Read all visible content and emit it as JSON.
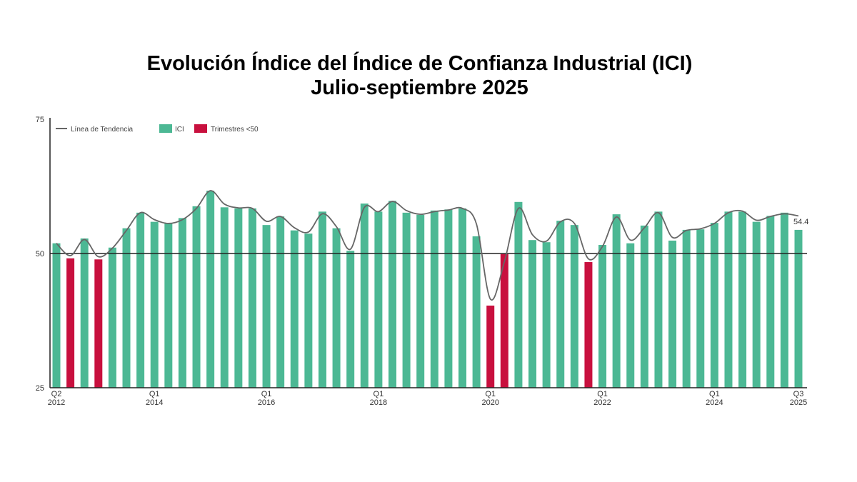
{
  "chart_data": {
    "type": "bar",
    "title": "Evolución Índice del Índice de Confianza Industrial (ICI)",
    "subtitle": "Julio-septiembre 2025",
    "ylim": [
      25,
      75
    ],
    "yticks": [
      25,
      50,
      75
    ],
    "reference_line": 50,
    "grid": false,
    "legend_position": "top-left",
    "legend": [
      "Línea de Tendencia",
      "ICI",
      "Trimestres <50"
    ],
    "colors": {
      "ici": "#4cb894",
      "below50": "#c8103e",
      "trend": "#666666",
      "axis": "#222222"
    },
    "xtick_labels": [
      {
        "index": 0,
        "q": "Q2",
        "year": "2012"
      },
      {
        "index": 7,
        "q": "Q1",
        "year": "2014"
      },
      {
        "index": 15,
        "q": "Q1",
        "year": "2016"
      },
      {
        "index": 23,
        "q": "Q1",
        "year": "2018"
      },
      {
        "index": 31,
        "q": "Q1",
        "year": "2020"
      },
      {
        "index": 39,
        "q": "Q1",
        "year": "2022"
      },
      {
        "index": 47,
        "q": "Q1",
        "year": "2024"
      },
      {
        "index": 53,
        "q": "Q3",
        "year": "2025"
      }
    ],
    "categories": [
      "2012Q2",
      "2012Q3",
      "2012Q4",
      "2013Q1",
      "2013Q2",
      "2013Q3",
      "2013Q4",
      "2014Q1",
      "2014Q2",
      "2014Q3",
      "2014Q4",
      "2015Q1",
      "2015Q2",
      "2015Q3",
      "2015Q4",
      "2016Q1",
      "2016Q2",
      "2016Q3",
      "2016Q4",
      "2017Q1",
      "2017Q2",
      "2017Q3",
      "2017Q4",
      "2018Q1",
      "2018Q2",
      "2018Q3",
      "2018Q4",
      "2019Q1",
      "2019Q2",
      "2019Q3",
      "2019Q4",
      "2020Q1",
      "2020Q2",
      "2020Q3",
      "2020Q4",
      "2021Q1",
      "2021Q2",
      "2021Q3",
      "2021Q4",
      "2022Q1",
      "2022Q2",
      "2022Q3",
      "2022Q4",
      "2023Q1",
      "2023Q2",
      "2023Q3",
      "2023Q4",
      "2024Q1",
      "2024Q2",
      "2024Q3",
      "2024Q4",
      "2025Q1",
      "2025Q2",
      "2025Q3"
    ],
    "values": [
      51.9,
      49.1,
      52.8,
      48.9,
      51.1,
      54.7,
      57.6,
      55.9,
      55.6,
      56.6,
      58.8,
      61.7,
      58.6,
      58.4,
      58.4,
      55.3,
      56.9,
      54.3,
      53.7,
      57.8,
      54.7,
      50.5,
      59.3,
      57.8,
      59.8,
      57.6,
      57.2,
      58.0,
      58.2,
      58.4,
      53.2,
      40.3,
      49.9,
      59.6,
      52.5,
      52.1,
      56.1,
      55.3,
      48.4,
      51.6,
      57.3,
      51.9,
      55.2,
      57.8,
      52.4,
      54.4,
      54.5,
      55.7,
      57.8,
      57.8,
      55.9,
      57.0,
      57.6,
      54.4
    ],
    "trend": [
      51.9,
      49.6,
      52.6,
      49.4,
      51.0,
      54.3,
      57.6,
      56.3,
      55.6,
      56.3,
      58.4,
      61.7,
      59.2,
      58.5,
      58.4,
      56.0,
      56.9,
      54.8,
      54.0,
      57.4,
      55.0,
      50.8,
      58.6,
      57.8,
      59.7,
      58.0,
      57.3,
      57.8,
      58.1,
      58.4,
      55.5,
      41.5,
      48.5,
      58.4,
      53.5,
      52.3,
      55.9,
      55.6,
      49.0,
      51.3,
      56.8,
      52.5,
      54.8,
      57.6,
      53.0,
      54.3,
      54.6,
      55.6,
      57.6,
      57.9,
      56.2,
      56.9,
      57.4,
      57.0
    ],
    "data_label": "54.4"
  }
}
